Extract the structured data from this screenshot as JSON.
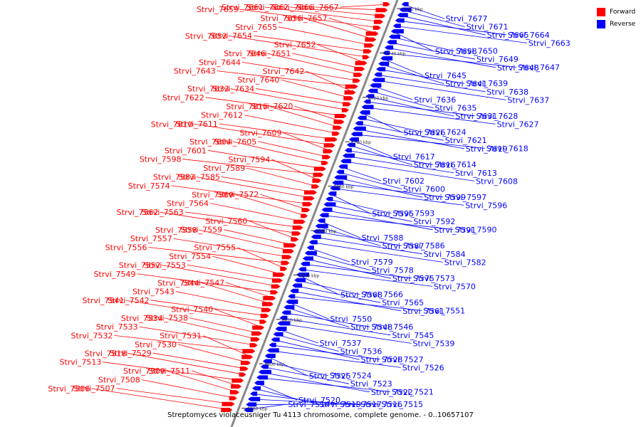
{
  "colors": {
    "forward": "#ff0000",
    "reverse": "#0000ff",
    "axis": "#888888",
    "tick": "#222222"
  },
  "legend": [
    {
      "label": "Forward",
      "color": "#ff0000"
    },
    {
      "label": "Reverse",
      "color": "#0000ff"
    }
  ],
  "caption": "Streptomyces violaceusniger Tu 4113 chromosome, complete genome. - 0..10657107",
  "axis": {
    "range_kbp": [
      8580,
      8770
    ],
    "ticks": [
      "8580 kbp",
      "8600 kbp",
      "8620 kbp",
      "8640 kbp",
      "8660 kbp",
      "8680 kbp",
      "8700 kbp",
      "8720 kbp",
      "8740 kbp",
      "8760 kbp"
    ]
  },
  "forward_genes": [
    "Strvi_7667",
    "Strvi_7666",
    "Strvi_7662",
    "Strvi_7661",
    "Strvi_7659",
    "Strvi_7657",
    "Strvi_7656",
    "Strvi_7655",
    "Strvi_7654",
    "Strvi_7653",
    "Strvi_7652",
    "Strvi_7651",
    "Strvi_7646",
    "Strvi_7644",
    "Strvi_7643",
    "Strvi_7642",
    "Strvi_7640",
    "Strvi_7634",
    "Strvi_7633",
    "Strvi_7622",
    "Strvi_7620",
    "Strvi_7615",
    "Strvi_7612",
    "Strvi_7611",
    "Strvi_7610",
    "Strvi_7609",
    "Strvi_7605",
    "Strvi_7604",
    "Strvi_7601",
    "Strvi_7598",
    "Strvi_7594",
    "Strvi_7589",
    "Strvi_7585",
    "Strvi_7583",
    "Strvi_7574",
    "Strvi_7572",
    "Strvi_7569",
    "Strvi_7564",
    "Strvi_7563",
    "Strvi_7562",
    "Strvi_7560",
    "Strvi_7559",
    "Strvi_7558",
    "Strvi_7557",
    "Strvi_7556",
    "Strvi_7555",
    "Strvi_7554",
    "Strvi_7553",
    "Strvi_7552",
    "Strvi_7549",
    "Strvi_7547",
    "Strvi_7544",
    "Strvi_7543",
    "Strvi_7542",
    "Strvi_7541",
    "Strvi_7540",
    "Strvi_7538",
    "Strvi_7534",
    "Strvi_7533",
    "Strvi_7532",
    "Strvi_7531",
    "Strvi_7530",
    "Strvi_7529",
    "Strvi_7518",
    "Strvi_7513",
    "Strvi_7511",
    "Strvi_7509",
    "Strvi_7508",
    "Strvi_7507",
    "Strvi_7506"
  ],
  "reverse_genes": [
    "Strvi_7677",
    "Strvi_7671",
    "Strvi_7665",
    "Strvi_7664",
    "Strvi_7663",
    "Strvi_7658",
    "Strvi_7650",
    "Strvi_7649",
    "Strvi_7648",
    "Strvi_7647",
    "Strvi_7645",
    "Strvi_7641",
    "Strvi_7639",
    "Strvi_7638",
    "Strvi_7637",
    "Strvi_7636",
    "Strvi_7635",
    "Strvi_7631",
    "Strvi_7628",
    "Strvi_7627",
    "Strvi_7626",
    "Strvi_7624",
    "Strvi_7621",
    "Strvi_7619",
    "Strvi_7618",
    "Strvi_7617",
    "Strvi_7616",
    "Strvi_7614",
    "Strvi_7613",
    "Strvi_7608",
    "Strvi_7602",
    "Strvi_7600",
    "Strvi_7599",
    "Strvi_7597",
    "Strvi_7596",
    "Strvi_7595",
    "Strvi_7593",
    "Strvi_7592",
    "Strvi_7591",
    "Strvi_7590",
    "Strvi_7588",
    "Strvi_7587",
    "Strvi_7586",
    "Strvi_7584",
    "Strvi_7582",
    "Strvi_7579",
    "Strvi_7578",
    "Strvi_7575",
    "Strvi_7573",
    "Strvi_7570",
    "Strvi_7568",
    "Strvi_7566",
    "Strvi_7565",
    "Strvi_7561",
    "Strvi_7551",
    "Strvi_7550",
    "Strvi_7548",
    "Strvi_7546",
    "Strvi_7545",
    "Strvi_7539",
    "Strvi_7537",
    "Strvi_7536",
    "Strvi_7528",
    "Strvi_7527",
    "Strvi_7526",
    "Strvi_7525",
    "Strvi_7524",
    "Strvi_7523",
    "Strvi_7522",
    "Strvi_7521",
    "Strvi_7520",
    "Strvi_7519",
    "Strvi_7517",
    "Strvi_7516",
    "Strvi_7515",
    "Strvi_7514"
  ]
}
